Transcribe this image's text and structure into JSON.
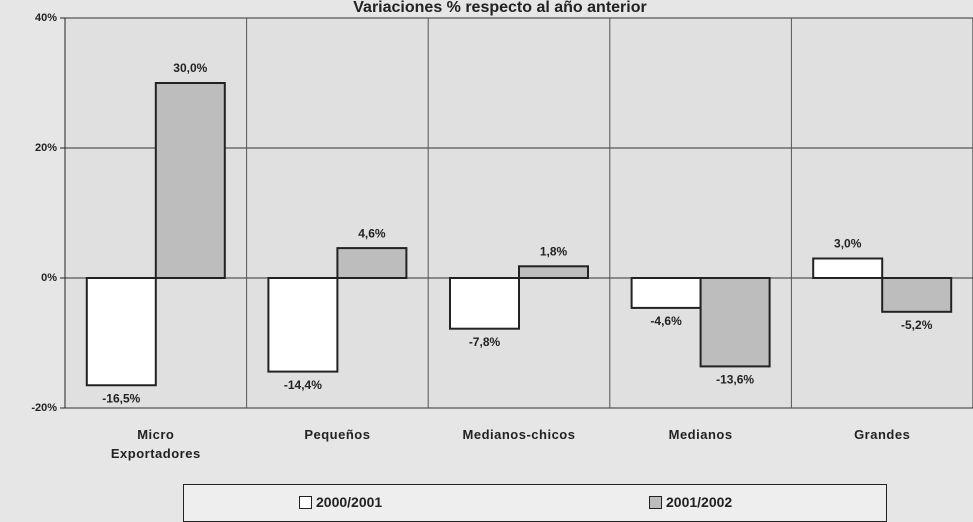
{
  "chart_data": {
    "type": "bar",
    "title": "Variaciones % respecto al año anterior",
    "categories": [
      "Micro Exportadores",
      "Pequeños",
      "Medianos-chicos",
      "Medianos",
      "Grandes"
    ],
    "series": [
      {
        "name": "2000/2001",
        "color": "#ffffff",
        "values": [
          -16.5,
          -14.4,
          -7.8,
          -4.6,
          3.0
        ],
        "value_labels": [
          "-16,5%",
          "-14,4%",
          "-7,8%",
          "-4,6%",
          "3,0%"
        ]
      },
      {
        "name": "2001/2002",
        "color": "#bdbdbd",
        "values": [
          30.0,
          4.6,
          1.8,
          -13.6,
          -5.2
        ],
        "value_labels": [
          "30,0%",
          "4,6%",
          "1,8%",
          "-13,6%",
          "-5,2%"
        ]
      }
    ],
    "ylim": [
      -20,
      40
    ],
    "yticks": [
      {
        "value": -20,
        "label": "-20%"
      },
      {
        "value": 0,
        "label": "0%"
      },
      {
        "value": 20,
        "label": "20%"
      },
      {
        "value": 40,
        "label": "40%"
      }
    ],
    "grid": true
  }
}
